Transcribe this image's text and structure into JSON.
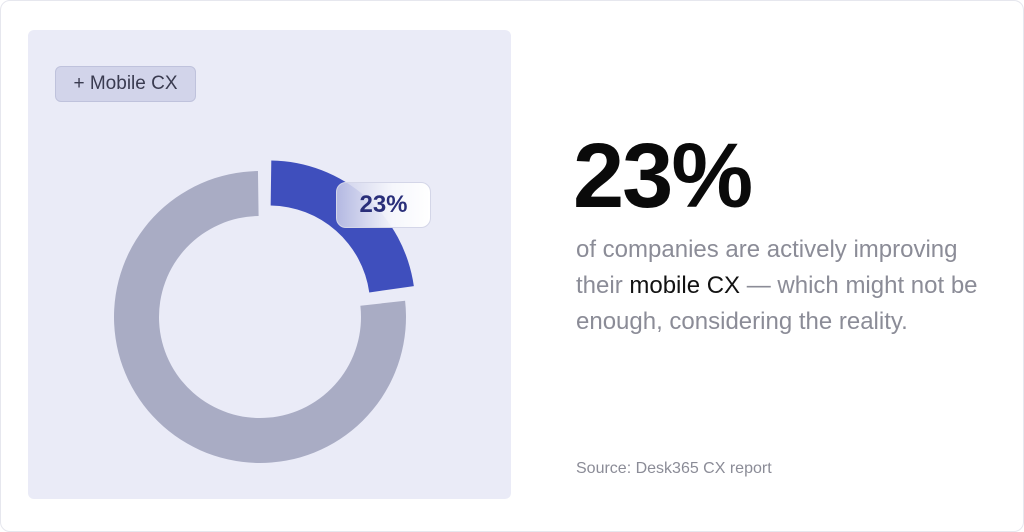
{
  "tag": {
    "label": "+ Mobile CX"
  },
  "headline": {
    "value": "23%"
  },
  "description": {
    "before": "of companies are actively improving their ",
    "highlight": "mobile CX",
    "after": " — which might not be enough, considering the reality."
  },
  "source": "Source: Desk365 CX report",
  "colors": {
    "highlight_segment": "#3f4fbd",
    "remaining_segment": "#a9acc4",
    "panel_background": "#eaebf7"
  },
  "chart_data": {
    "type": "pie",
    "variant": "donut",
    "slices": [
      {
        "label": "23%",
        "value": 23,
        "color": "#3f4fbd",
        "exploded": true
      },
      {
        "value": 77,
        "color": "#a9acc4"
      }
    ],
    "data_label": "23%"
  }
}
